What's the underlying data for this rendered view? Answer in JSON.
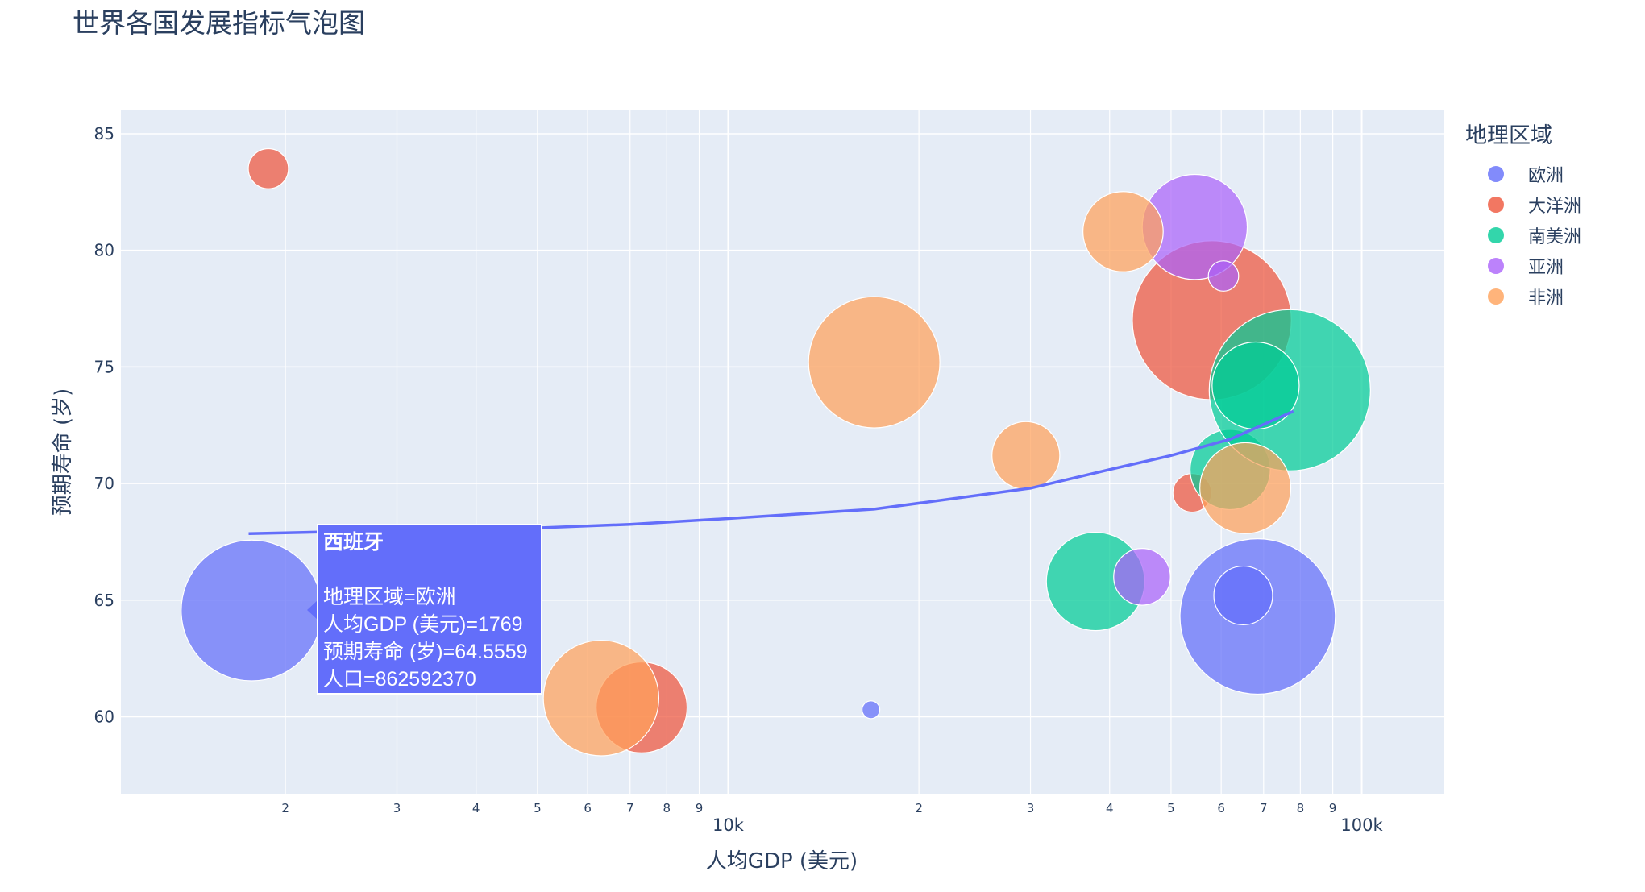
{
  "title": "世界各国发展指标气泡图",
  "chart_data": {
    "type": "scatter",
    "title": "世界各国发展指标气泡图",
    "xlabel": "人均GDP (美元)",
    "ylabel": "预期寿命 (岁)",
    "x_scale": "log",
    "xlim": [
      1100,
      135000
    ],
    "ylim": [
      56.7,
      86
    ],
    "x_ticks": [
      {
        "v": 2000,
        "label": "2"
      },
      {
        "v": 3000,
        "label": "3"
      },
      {
        "v": 4000,
        "label": "4"
      },
      {
        "v": 5000,
        "label": "5"
      },
      {
        "v": 6000,
        "label": "6"
      },
      {
        "v": 7000,
        "label": "7"
      },
      {
        "v": 8000,
        "label": "8"
      },
      {
        "v": 9000,
        "label": "9"
      },
      {
        "v": 10000,
        "label": "10k"
      },
      {
        "v": 20000,
        "label": "2"
      },
      {
        "v": 30000,
        "label": "3"
      },
      {
        "v": 40000,
        "label": "4"
      },
      {
        "v": 50000,
        "label": "5"
      },
      {
        "v": 60000,
        "label": "6"
      },
      {
        "v": 70000,
        "label": "7"
      },
      {
        "v": 80000,
        "label": "8"
      },
      {
        "v": 90000,
        "label": "9"
      },
      {
        "v": 100000,
        "label": "100k"
      }
    ],
    "y_ticks": [
      60,
      65,
      70,
      75,
      80,
      85
    ],
    "grid": true,
    "legend_title": "地理区域",
    "legend_placement": "right",
    "series": [
      {
        "name": "欧洲",
        "color": "#636efa",
        "points": [
          {
            "x": 1769,
            "y": 64.5559,
            "size": 862592370
          },
          {
            "x": 16800,
            "y": 60.3,
            "size": 12000000
          },
          {
            "x": 68500,
            "y": 64.3,
            "size": 1050000000
          },
          {
            "x": 65000,
            "y": 65.2,
            "size": 150000000
          }
        ]
      },
      {
        "name": "大洋洲",
        "color": "#ef553b",
        "points": [
          {
            "x": 1880,
            "y": 83.5,
            "size": 70000000
          },
          {
            "x": 7300,
            "y": 60.4,
            "size": 360000000
          },
          {
            "x": 54000,
            "y": 69.6,
            "size": 65000000
          },
          {
            "x": 58000,
            "y": 77.0,
            "size": 1100000000
          }
        ]
      },
      {
        "name": "南美洲",
        "color": "#00cc96",
        "points": [
          {
            "x": 38000,
            "y": 65.8,
            "size": 420000000
          },
          {
            "x": 62000,
            "y": 70.6,
            "size": 280000000
          },
          {
            "x": 77000,
            "y": 74.0,
            "size": 1130000000
          },
          {
            "x": 68000,
            "y": 74.2,
            "size": 330000000
          }
        ]
      },
      {
        "name": "亚洲",
        "color": "#ab63fa",
        "points": [
          {
            "x": 45000,
            "y": 66.0,
            "size": 140000000
          },
          {
            "x": 54500,
            "y": 81.0,
            "size": 480000000
          },
          {
            "x": 60500,
            "y": 78.9,
            "size": 40000000
          }
        ]
      },
      {
        "name": "非洲",
        "color": "#ffa15a",
        "points": [
          {
            "x": 6300,
            "y": 60.8,
            "size": 580000000
          },
          {
            "x": 17000,
            "y": 75.2,
            "size": 750000000
          },
          {
            "x": 29500,
            "y": 71.2,
            "size": 200000000
          },
          {
            "x": 42000,
            "y": 80.8,
            "size": 280000000
          },
          {
            "x": 65500,
            "y": 69.8,
            "size": 360000000
          }
        ]
      }
    ],
    "trendline": {
      "color": "#636efa",
      "points": [
        {
          "x": 1750,
          "y": 67.85
        },
        {
          "x": 3000,
          "y": 68.0
        },
        {
          "x": 5000,
          "y": 68.1
        },
        {
          "x": 7000,
          "y": 68.25
        },
        {
          "x": 10000,
          "y": 68.5
        },
        {
          "x": 17000,
          "y": 68.9
        },
        {
          "x": 30000,
          "y": 69.8
        },
        {
          "x": 40000,
          "y": 70.6
        },
        {
          "x": 50000,
          "y": 71.2
        },
        {
          "x": 62000,
          "y": 71.9
        },
        {
          "x": 78000,
          "y": 73.1
        }
      ]
    }
  },
  "legend": {
    "title": "地理区域",
    "items": [
      {
        "label": "欧洲",
        "color": "#636efa"
      },
      {
        "label": "大洋洲",
        "color": "#ef553b"
      },
      {
        "label": "南美洲",
        "color": "#00cc96"
      },
      {
        "label": "亚洲",
        "color": "#ab63fa"
      },
      {
        "label": "非洲",
        "color": "#ffa15a"
      }
    ]
  },
  "tooltip": {
    "title": "西班牙",
    "line1": "地理区域=欧洲",
    "line2": "人均GDP (美元)=1769",
    "line3": "预期寿命 (岁)=64.5559",
    "line4": "人口=862592370"
  }
}
